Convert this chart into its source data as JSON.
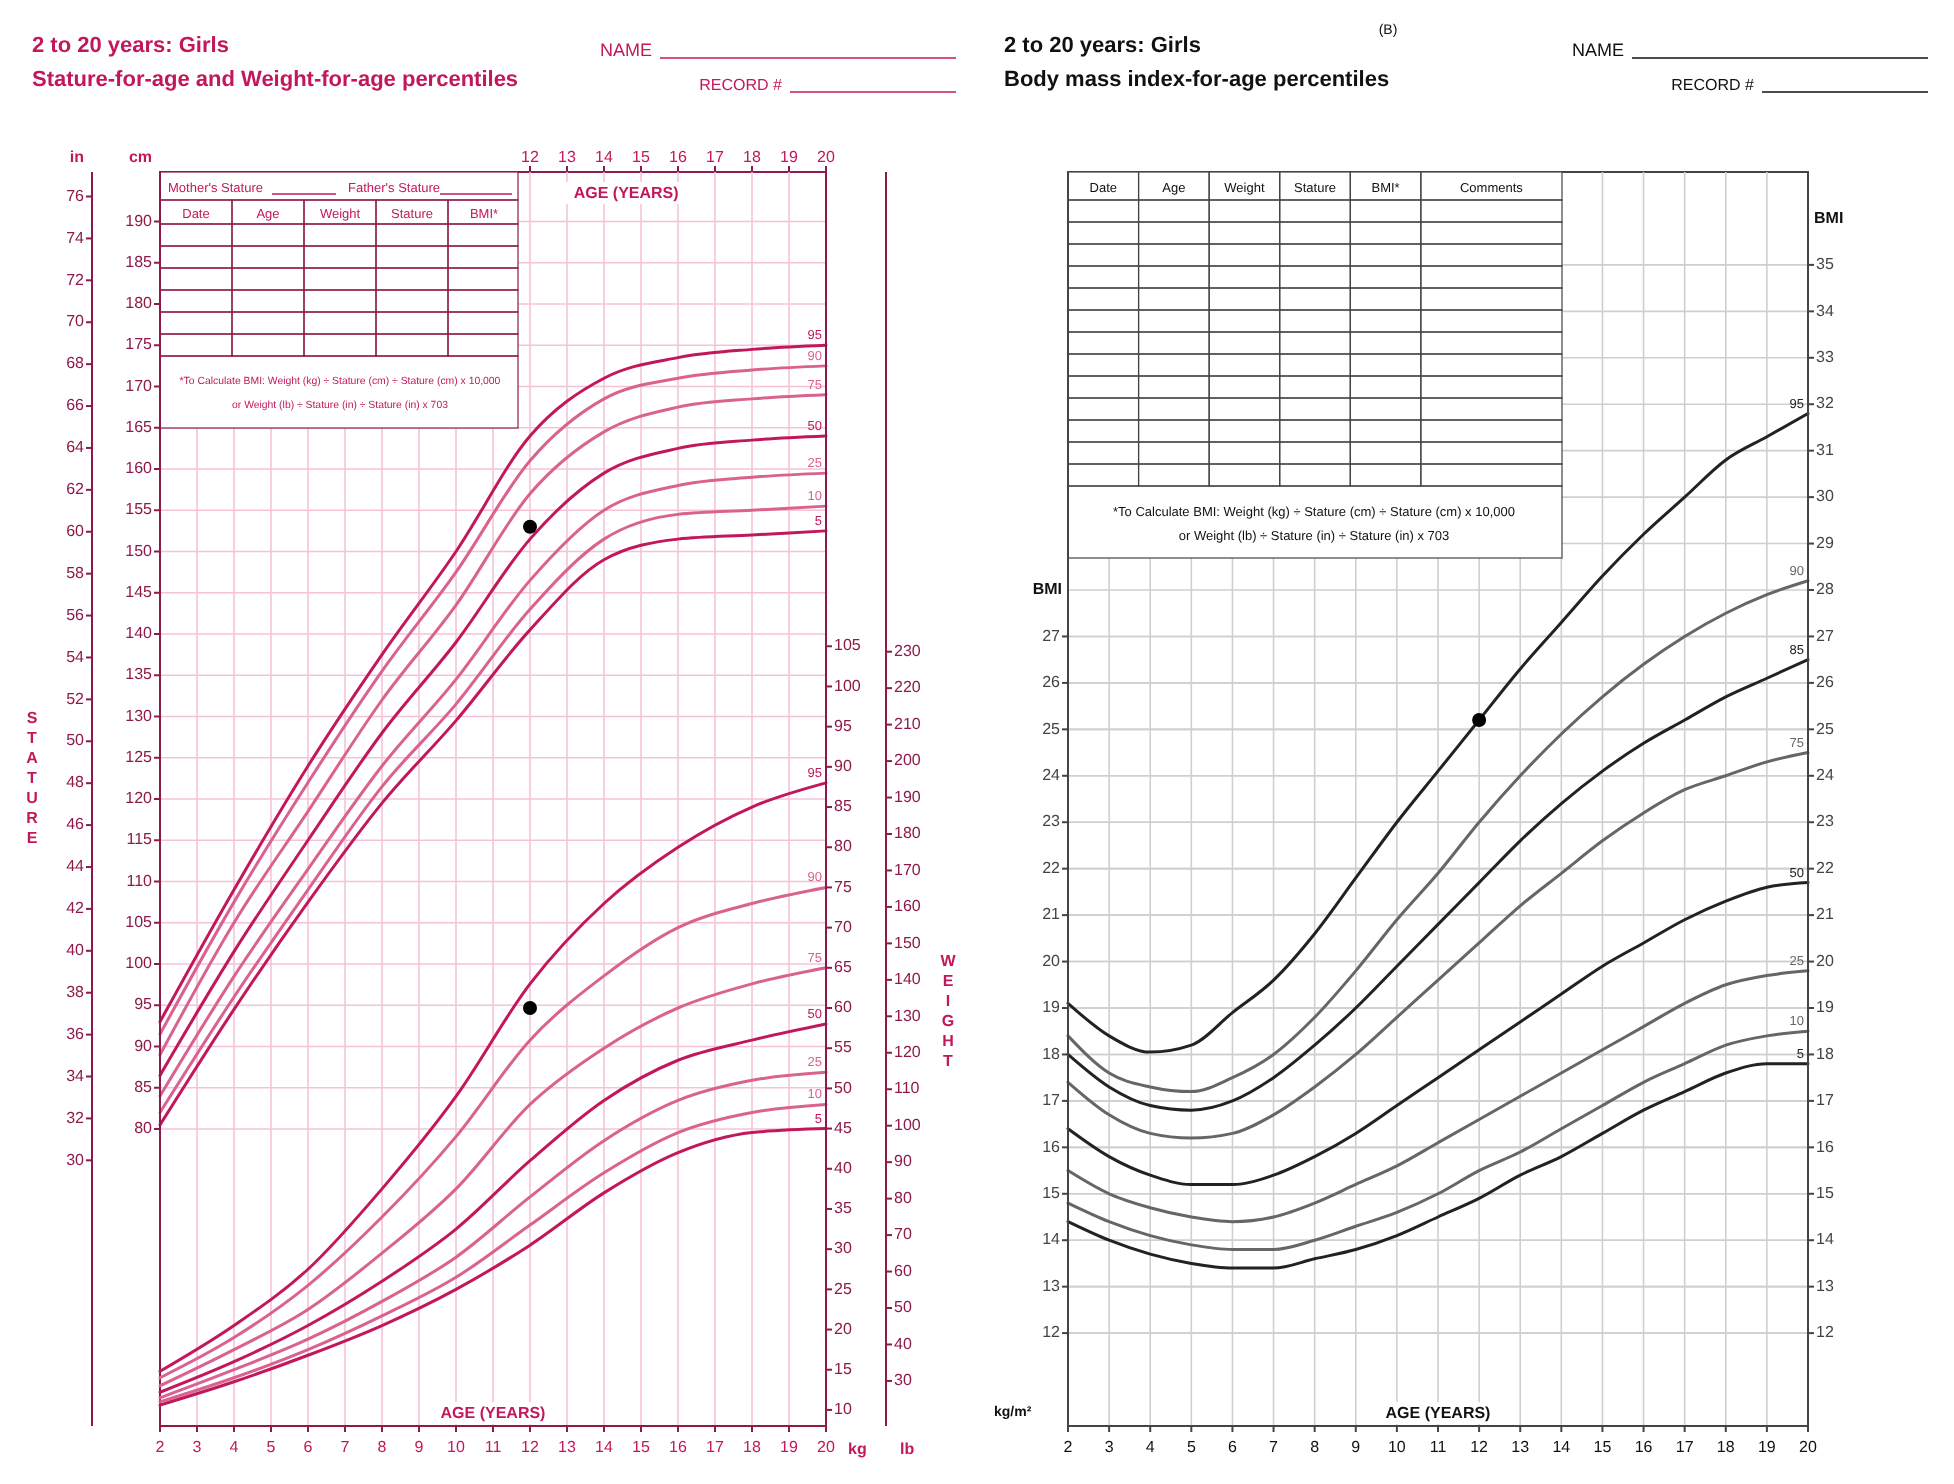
{
  "chart_data": [
    {
      "type": "line",
      "title": "2 to 20 years: Girls",
      "subtitle": "Stature-for-age and Weight-for-age percentiles",
      "xlabel": "AGE (YEARS)",
      "x2label": "AGE (YEARS)",
      "y2label": "STATURE",
      "x": [
        2,
        4,
        6,
        8,
        10,
        12,
        14,
        16,
        18,
        20
      ],
      "xlim": [
        2,
        20
      ],
      "xticks": [
        2,
        3,
        4,
        5,
        6,
        7,
        8,
        9,
        10,
        11,
        12,
        13,
        14,
        15,
        16,
        17,
        18,
        19,
        20
      ],
      "x2lim": [
        2,
        20
      ],
      "x2ticks": [
        12,
        13,
        14,
        15,
        16,
        17,
        18,
        19,
        20
      ],
      "ylim": [
        44,
        196
      ],
      "yticks": [
        80,
        85,
        90,
        95,
        100,
        105,
        110,
        115,
        120,
        125,
        130,
        135,
        140,
        145,
        150,
        155,
        160,
        165,
        170,
        175,
        180,
        185,
        190
      ],
      "y2lim": [
        17.32,
        77.17
      ],
      "y2ticks": [
        30,
        32,
        34,
        36,
        38,
        40,
        42,
        44,
        46,
        48,
        50,
        52,
        54,
        56,
        58,
        60,
        62,
        64,
        66,
        68,
        70,
        72,
        74,
        76
      ],
      "grid": true,
      "series": [
        {
          "name": "95",
          "color": "#c2185b",
          "values": [
            93,
            109,
            124,
            137.5,
            150,
            164,
            171,
            173.5,
            174.5,
            175
          ]
        },
        {
          "name": "90",
          "color": "#d9628f",
          "values": [
            91.5,
            107.5,
            122,
            135.5,
            147.5,
            161,
            168.5,
            171,
            172,
            172.5
          ]
        },
        {
          "name": "75",
          "color": "#d9628f",
          "values": [
            89,
            105,
            118.5,
            132,
            143.5,
            157,
            164.5,
            167.5,
            168.5,
            169
          ]
        },
        {
          "name": "50",
          "color": "#c2185b",
          "values": [
            86.5,
            101.5,
            115,
            128,
            139,
            151.5,
            159.5,
            162.5,
            163.5,
            164
          ]
        },
        {
          "name": "25",
          "color": "#d9628f",
          "values": [
            84,
            98.5,
            111.5,
            124,
            134.5,
            146.5,
            155,
            158,
            159,
            159.5
          ]
        },
        {
          "name": "10",
          "color": "#d9628f",
          "values": [
            82,
            96,
            109,
            121.5,
            131.5,
            143,
            151.5,
            154.5,
            155,
            155.5
          ]
        },
        {
          "name": "5",
          "color": "#c2185b",
          "values": [
            80.5,
            94.5,
            107.5,
            119.5,
            129.5,
            140.5,
            149,
            151.5,
            152,
            152.5
          ]
        },
        {
          "type": "scatter",
          "color": "#000000",
          "values": [
            null,
            null,
            null,
            null,
            null,
            153,
            null,
            null,
            null,
            null
          ]
        }
      ],
      "annotations": [
        "NAME",
        "RECORD #",
        "Mother's Stature",
        "Father's Stature",
        "Date",
        "Age",
        "Weight",
        "Stature",
        "BMI*",
        "*To Calculate BMI: Weight (kg) ÷ Stature (cm) ÷ Stature (cm) x 10,000",
        "or Weight (lb) ÷ Stature (in) ÷ Stature (in) x 703",
        "cm",
        "in"
      ]
    },
    {
      "type": "line",
      "y2label": "WEIGHT",
      "tick_labels": "y",
      "x": [
        2,
        4,
        6,
        8,
        10,
        12,
        14,
        16,
        18,
        20
      ],
      "xlim": [
        2,
        20
      ],
      "ylim": [
        8,
        164
      ],
      "yticks": [
        10,
        15,
        20,
        25,
        30,
        35,
        40,
        45,
        50,
        55,
        60,
        65,
        70,
        75,
        80,
        85,
        90,
        95,
        100,
        105
      ],
      "y2lim": [
        17.64,
        361.56
      ],
      "y2ticks": [
        30,
        40,
        50,
        60,
        70,
        80,
        90,
        100,
        110,
        120,
        130,
        140,
        150,
        160,
        170,
        180,
        190,
        200,
        210,
        220,
        230
      ],
      "series": [
        {
          "name": "95",
          "color": "#c2185b",
          "values": [
            14.8,
            20.5,
            27.5,
            37.5,
            49,
            63,
            73,
            80,
            85,
            88
          ]
        },
        {
          "name": "90",
          "color": "#d9628f",
          "values": [
            14,
            19,
            25.5,
            34,
            44,
            56,
            64,
            70,
            73,
            75
          ]
        },
        {
          "name": "75",
          "color": "#d9628f",
          "values": [
            13,
            17.5,
            22.5,
            29.5,
            37.5,
            48,
            55,
            60,
            63,
            65
          ]
        },
        {
          "name": "50",
          "color": "#c2185b",
          "values": [
            12.2,
            16,
            20.5,
            26,
            32.5,
            41,
            48.5,
            53.5,
            56,
            58
          ]
        },
        {
          "name": "25",
          "color": "#d9628f",
          "values": [
            11.5,
            15,
            18.8,
            23.5,
            29,
            36.5,
            43.5,
            48.5,
            51,
            52
          ]
        },
        {
          "name": "10",
          "color": "#d9628f",
          "values": [
            11,
            14,
            17.5,
            21.7,
            26.5,
            33,
            39.5,
            44.5,
            47,
            48
          ]
        },
        {
          "name": "5",
          "color": "#c2185b",
          "values": [
            10.6,
            13.5,
            16.8,
            20.5,
            25,
            30.5,
            37,
            42,
            44.5,
            45
          ]
        },
        {
          "type": "scatter",
          "color": "#000000",
          "values": [
            null,
            null,
            null,
            null,
            null,
            60,
            null,
            null,
            null,
            null
          ]
        }
      ],
      "annotations": [
        "kg",
        "lb"
      ]
    },
    {
      "type": "line",
      "title": "2 to 20 years: Girls",
      "subtitle": "Body mass index-for-age percentiles",
      "xlabel": "AGE (YEARS)",
      "ylabel": "BMI",
      "y2label": "BMI",
      "x": [
        2,
        3,
        4,
        5,
        6,
        7,
        8,
        9,
        10,
        11,
        12,
        13,
        14,
        15,
        16,
        17,
        18,
        19,
        20
      ],
      "xlim": [
        2,
        20
      ],
      "xticks": [
        2,
        3,
        4,
        5,
        6,
        7,
        8,
        9,
        10,
        11,
        12,
        13,
        14,
        15,
        16,
        17,
        18,
        19,
        20
      ],
      "ylim": [
        10,
        37
      ],
      "yticks": [
        12,
        13,
        14,
        15,
        16,
        17,
        18,
        19,
        20,
        21,
        22,
        23,
        24,
        25,
        26,
        27
      ],
      "y2lim": [
        10,
        37
      ],
      "y2ticks": [
        12,
        13,
        14,
        15,
        16,
        17,
        18,
        19,
        20,
        21,
        22,
        23,
        24,
        25,
        26,
        27,
        28,
        29,
        30,
        31,
        32,
        33,
        34,
        35
      ],
      "grid": true,
      "series": [
        {
          "name": "95",
          "color": "#222222",
          "values": [
            19.1,
            18.4,
            18.05,
            18.2,
            18.9,
            19.6,
            20.6,
            21.8,
            23.0,
            24.1,
            25.2,
            26.3,
            27.3,
            28.3,
            29.2,
            30.0,
            30.8,
            31.3,
            31.8
          ]
        },
        {
          "name": "90",
          "color": "#666666",
          "values": [
            18.4,
            17.6,
            17.3,
            17.2,
            17.5,
            18.0,
            18.8,
            19.8,
            20.9,
            21.9,
            23.0,
            24.0,
            24.9,
            25.7,
            26.4,
            27.0,
            27.5,
            27.9,
            28.2
          ]
        },
        {
          "name": "85",
          "color": "#222222",
          "values": [
            18.0,
            17.3,
            16.9,
            16.8,
            17.0,
            17.5,
            18.2,
            19.0,
            19.9,
            20.8,
            21.7,
            22.6,
            23.4,
            24.1,
            24.7,
            25.2,
            25.7,
            26.1,
            26.5
          ]
        },
        {
          "name": "75",
          "color": "#666666",
          "values": [
            17.4,
            16.7,
            16.3,
            16.2,
            16.3,
            16.7,
            17.3,
            18.0,
            18.8,
            19.6,
            20.4,
            21.2,
            21.9,
            22.6,
            23.2,
            23.7,
            24.0,
            24.3,
            24.5
          ]
        },
        {
          "name": "50",
          "color": "#222222",
          "values": [
            16.4,
            15.8,
            15.4,
            15.2,
            15.2,
            15.4,
            15.8,
            16.3,
            16.9,
            17.5,
            18.1,
            18.7,
            19.3,
            19.9,
            20.4,
            20.9,
            21.3,
            21.6,
            21.7
          ]
        },
        {
          "name": "25",
          "color": "#666666",
          "values": [
            15.5,
            15.0,
            14.7,
            14.5,
            14.4,
            14.5,
            14.8,
            15.2,
            15.6,
            16.1,
            16.6,
            17.1,
            17.6,
            18.1,
            18.6,
            19.1,
            19.5,
            19.7,
            19.8
          ]
        },
        {
          "name": "10",
          "color": "#666666",
          "values": [
            14.8,
            14.4,
            14.1,
            13.9,
            13.8,
            13.8,
            14.0,
            14.3,
            14.6,
            15.0,
            15.5,
            15.9,
            16.4,
            16.9,
            17.4,
            17.8,
            18.2,
            18.4,
            18.5
          ]
        },
        {
          "name": "5",
          "color": "#222222",
          "values": [
            14.4,
            14.0,
            13.7,
            13.5,
            13.4,
            13.4,
            13.6,
            13.8,
            14.1,
            14.5,
            14.9,
            15.4,
            15.8,
            16.3,
            16.8,
            17.2,
            17.6,
            17.8,
            17.8
          ]
        },
        {
          "type": "scatter",
          "color": "#000000",
          "values": [
            null,
            null,
            null,
            null,
            null,
            null,
            null,
            null,
            null,
            null,
            25.2,
            null,
            null,
            null,
            null,
            null,
            null,
            null,
            null
          ]
        }
      ],
      "annotations": [
        "NAME",
        "RECORD #",
        "Date",
        "Age",
        "Weight",
        "Stature",
        "BMI*",
        "Comments",
        "*To Calculate BMI: Weight (kg) ÷ Stature (cm) ÷ Stature (cm) x 10,000",
        "or Weight (lb) ÷ Stature (in) ÷ Stature (in) x 703",
        "kg/m²",
        "(B)"
      ]
    }
  ]
}
